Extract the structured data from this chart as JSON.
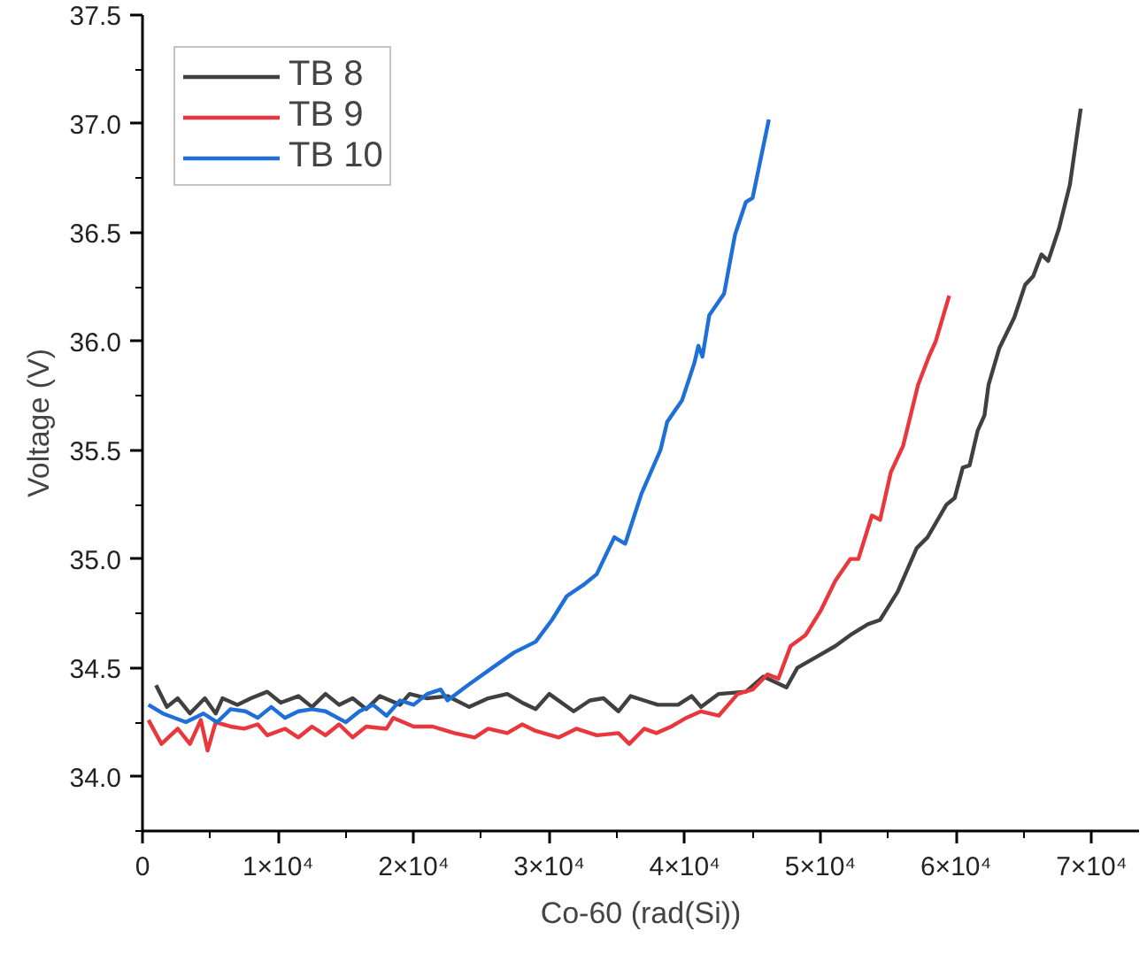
{
  "chart_data": {
    "type": "line",
    "xlabel": "Co-60 (rad(Si))",
    "ylabel": "Voltage (V)",
    "xlim": [
      0,
      73500
    ],
    "ylim": [
      33.75,
      37.5
    ],
    "xticks": [
      0,
      {
        "value": 10000,
        "label": "1×10⁴"
      },
      {
        "value": 20000,
        "label": "2×10⁴"
      },
      {
        "value": 30000,
        "label": "3×10⁴"
      },
      {
        "value": 40000,
        "label": "4×10⁴"
      },
      {
        "value": 50000,
        "label": "5×10⁴"
      },
      {
        "value": 60000,
        "label": "6×10⁴"
      },
      {
        "value": 70000,
        "label": "7×10⁴"
      }
    ],
    "yticks": [
      {
        "value": 34,
        "label": "34.0"
      },
      34.5,
      {
        "value": 35,
        "label": "35.0"
      },
      35.5,
      {
        "value": 36,
        "label": "36.0"
      },
      36.5,
      {
        "value": 37,
        "label": "37.0"
      },
      37.5
    ],
    "grid": false,
    "legend": "top left",
    "line_style": "solid",
    "marker": "none",
    "series": [
      {
        "name": "TB 8",
        "color": "#404040",
        "x": [
          1000,
          1800,
          2600,
          3500,
          4600,
          5400,
          5900,
          7000,
          8000,
          9200,
          10200,
          11500,
          12500,
          13500,
          14500,
          15500,
          16500,
          17500,
          19000,
          19700,
          21000,
          22500,
          24100,
          25500,
          26900,
          28000,
          29000,
          30000,
          31800,
          33000,
          34000,
          35100,
          36000,
          37000,
          38000,
          39500,
          40500,
          41200,
          42500,
          44500,
          45800,
          47500,
          48300,
          49700,
          51100,
          52200,
          53500,
          54400,
          55200,
          55700,
          57100,
          57900,
          59300,
          59900,
          60500,
          61000,
          61600,
          62100,
          62400,
          63200,
          64300,
          65100,
          65700,
          66300,
          66800,
          67600,
          68400,
          69200
        ],
        "values": [
          34.42,
          34.32,
          34.36,
          34.29,
          34.36,
          34.29,
          34.36,
          34.33,
          34.36,
          34.39,
          34.34,
          34.37,
          34.32,
          34.38,
          34.33,
          34.36,
          34.31,
          34.37,
          34.33,
          34.38,
          34.36,
          34.37,
          34.32,
          34.36,
          34.38,
          34.34,
          34.31,
          34.38,
          34.3,
          34.35,
          34.36,
          34.3,
          34.37,
          34.35,
          34.33,
          34.33,
          34.37,
          34.32,
          34.38,
          34.39,
          34.46,
          34.41,
          34.5,
          34.55,
          34.6,
          34.65,
          34.7,
          34.72,
          34.8,
          34.85,
          35.05,
          35.1,
          35.25,
          35.28,
          35.42,
          35.43,
          35.59,
          35.66,
          35.8,
          35.97,
          36.11,
          36.26,
          36.3,
          36.4,
          36.37,
          36.52,
          36.72,
          37.07
        ]
      },
      {
        "name": "TB 9",
        "color": "#e8383d",
        "x": [
          440,
          1400,
          2600,
          3500,
          4300,
          4800,
          5400,
          6500,
          7500,
          8500,
          9200,
          10500,
          11500,
          12500,
          13500,
          14500,
          15500,
          16500,
          18000,
          18500,
          20000,
          21400,
          23000,
          24500,
          25500,
          26900,
          28000,
          29000,
          30700,
          32000,
          33500,
          35100,
          35900,
          37000,
          37900,
          39000,
          40100,
          41200,
          42500,
          43900,
          45000,
          46100,
          46900,
          47800,
          48900,
          50000,
          51100,
          52200,
          52800,
          53800,
          54400,
          55200,
          56100,
          57200,
          58000,
          58500,
          59500
        ],
        "values": [
          34.26,
          34.15,
          34.22,
          34.15,
          34.26,
          34.12,
          34.25,
          34.23,
          34.22,
          34.24,
          34.19,
          34.22,
          34.18,
          34.23,
          34.19,
          34.24,
          34.18,
          34.23,
          34.22,
          34.27,
          34.23,
          34.23,
          34.2,
          34.18,
          34.22,
          34.2,
          34.24,
          34.21,
          34.18,
          34.22,
          34.19,
          34.2,
          34.15,
          34.22,
          34.2,
          34.23,
          34.27,
          34.3,
          34.28,
          34.38,
          34.4,
          34.47,
          34.45,
          34.6,
          34.65,
          34.76,
          34.9,
          35.0,
          35.0,
          35.2,
          35.18,
          35.4,
          35.52,
          35.8,
          35.93,
          36.0,
          36.21
        ]
      },
      {
        "name": "TB 10",
        "color": "#1f6fd8",
        "x": [
          440,
          1500,
          3200,
          4500,
          5500,
          6500,
          7600,
          8500,
          9500,
          10500,
          11500,
          12500,
          13500,
          15000,
          16000,
          17000,
          18000,
          19000,
          20000,
          21000,
          22000,
          22500,
          24000,
          25800,
          27400,
          29000,
          30200,
          31300,
          32500,
          33500,
          34800,
          35600,
          36800,
          38200,
          38700,
          39800,
          40700,
          41000,
          41300,
          41800,
          42900,
          43700,
          44500,
          45000,
          46200
        ],
        "values": [
          34.33,
          34.29,
          34.25,
          34.29,
          34.25,
          34.31,
          34.3,
          34.27,
          34.32,
          34.27,
          34.3,
          34.31,
          34.3,
          34.25,
          34.3,
          34.33,
          34.28,
          34.35,
          34.33,
          34.38,
          34.4,
          34.35,
          34.42,
          34.5,
          34.57,
          34.62,
          34.72,
          34.83,
          34.88,
          34.93,
          35.1,
          35.07,
          35.3,
          35.5,
          35.63,
          35.73,
          35.9,
          35.98,
          35.93,
          36.12,
          36.22,
          36.49,
          36.64,
          36.66,
          37.02
        ]
      }
    ]
  }
}
